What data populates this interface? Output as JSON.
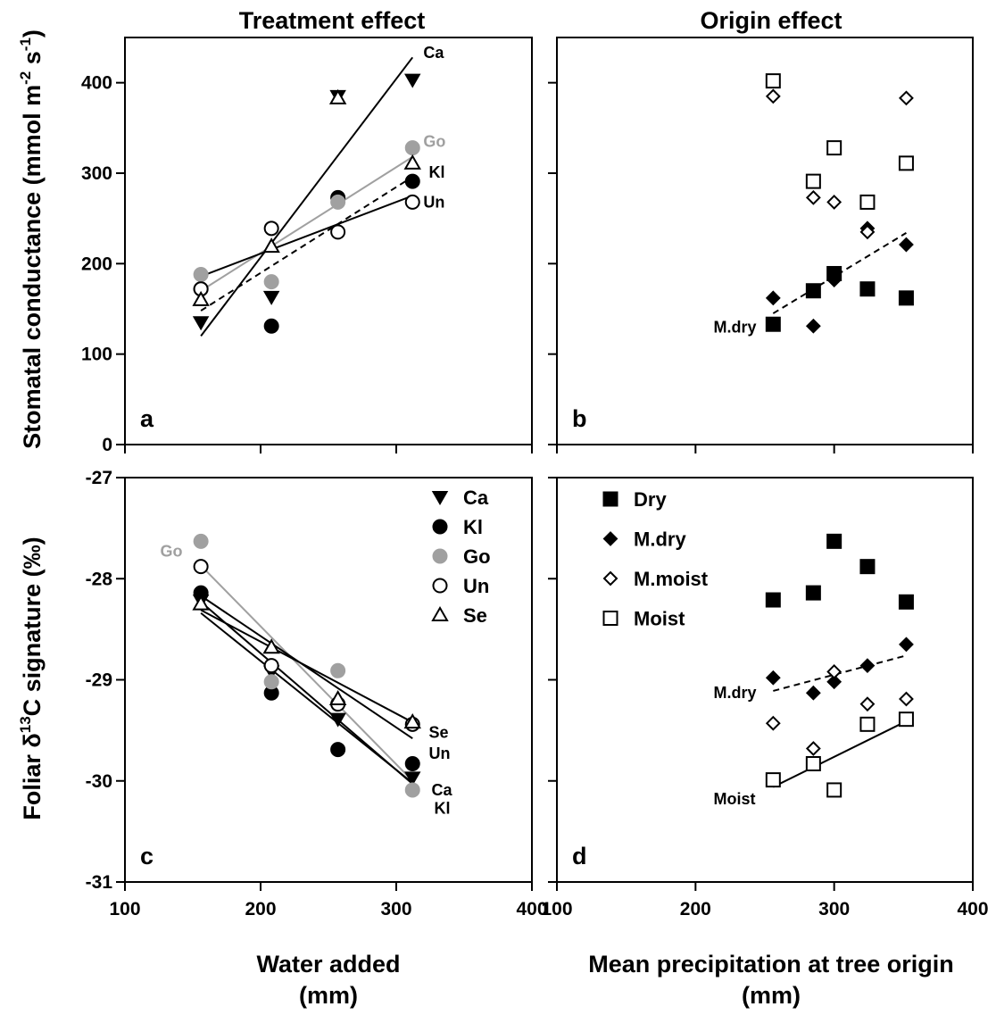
{
  "figure": {
    "col_titles": [
      "Treatment effect",
      "Origin effect"
    ],
    "y_titles": {
      "top": "Stomatal conductance (mmol m-2 s-1)",
      "bottom": "Foliar δ13C signature (‰)"
    },
    "x_titles": {
      "left": [
        "Water added",
        "(mm)"
      ],
      "right": [
        "Mean precipitation at tree origin",
        "(mm)"
      ]
    }
  },
  "colors": {
    "black": "#000000",
    "grey": "#a0a0a0"
  },
  "chart_data": [
    {
      "id": "a",
      "type": "scatter",
      "panel_label": "a",
      "title": "Treatment effect",
      "xlabel": "Water added (mm)",
      "ylabel": "Stomatal conductance (mmol m-2 s-1)",
      "xlim": [
        100,
        400
      ],
      "ylim": [
        0,
        450
      ],
      "xticks": [
        100,
        200,
        300,
        400
      ],
      "yticks": [
        0,
        100,
        200,
        300,
        400
      ],
      "grid": false,
      "series": [
        {
          "name": "Ca",
          "marker": "triangle-down-filled",
          "color": "#000000",
          "x": [
            156,
            208,
            257,
            312
          ],
          "y": [
            135,
            163,
            385,
            403
          ],
          "fit": {
            "x": [
              156,
              312
            ],
            "y": [
              120,
              428
            ],
            "dash": false
          }
        },
        {
          "name": "Kl",
          "marker": "circle-filled",
          "color": "#000000",
          "x": [
            156,
            208,
            257,
            312
          ],
          "y": [
            172,
            131,
            273,
            291
          ],
          "fit": {
            "x": [
              156,
              312
            ],
            "y": [
              148,
              296
            ],
            "dash": true
          }
        },
        {
          "name": "Go",
          "marker": "circle-filled",
          "color": "#a0a0a0",
          "x": [
            156,
            208,
            257,
            312
          ],
          "y": [
            188,
            180,
            268,
            328
          ],
          "fit": {
            "x": [
              156,
              312
            ],
            "y": [
              170,
              318
            ],
            "dash": false
          }
        },
        {
          "name": "Un",
          "marker": "circle-open",
          "color": "#000000",
          "x": [
            156,
            208,
            257,
            312
          ],
          "y": [
            172,
            239,
            235,
            268
          ],
          "fit": {
            "x": [
              156,
              312
            ],
            "y": [
              186,
              275
            ],
            "dash": false
          }
        },
        {
          "name": "Se",
          "marker": "triangle-up-open",
          "color": "#000000",
          "x": [
            156,
            208,
            257,
            312
          ],
          "y": [
            160,
            219,
            383,
            311
          ]
        }
      ],
      "annotations": [
        {
          "text": "Ca",
          "x": 320,
          "y": 433,
          "color": "#000000"
        },
        {
          "text": "Go",
          "x": 320,
          "y": 335,
          "color": "#a0a0a0"
        },
        {
          "text": "Kl",
          "x": 324,
          "y": 301,
          "color": "#000000"
        },
        {
          "text": "Un",
          "x": 320,
          "y": 268,
          "color": "#000000"
        }
      ]
    },
    {
      "id": "b",
      "type": "scatter",
      "panel_label": "b",
      "title": "Origin effect",
      "xlabel": "Mean precipitation at tree origin (mm)",
      "ylabel": "Stomatal conductance (mmol m-2 s-1)",
      "xlim": [
        100,
        400
      ],
      "ylim": [
        0,
        450
      ],
      "xticks": [
        100,
        200,
        300,
        400
      ],
      "yticks": [
        0,
        100,
        200,
        300,
        400
      ],
      "grid": false,
      "series": [
        {
          "name": "Dry",
          "marker": "square-filled",
          "color": "#000000",
          "x": [
            256,
            285,
            300,
            324,
            352
          ],
          "y": [
            133,
            170,
            189,
            172,
            162
          ]
        },
        {
          "name": "M.dry",
          "marker": "diamond-filled",
          "color": "#000000",
          "x": [
            256,
            285,
            300,
            324,
            352
          ],
          "y": [
            162,
            131,
            182,
            239,
            221
          ],
          "fit": {
            "x": [
              256,
              352
            ],
            "y": [
              145,
              234
            ],
            "dash": true
          }
        },
        {
          "name": "M.moist",
          "marker": "diamond-open",
          "color": "#000000",
          "x": [
            256,
            285,
            300,
            324,
            352
          ],
          "y": [
            385,
            273,
            268,
            235,
            383
          ]
        },
        {
          "name": "Moist",
          "marker": "square-open",
          "color": "#000000",
          "x": [
            256,
            285,
            300,
            324,
            352
          ],
          "y": [
            402,
            291,
            328,
            268,
            311
          ]
        }
      ],
      "annotations": [
        {
          "text": "M.dry",
          "x": 213,
          "y": 130,
          "color": "#000000"
        }
      ]
    },
    {
      "id": "c",
      "type": "scatter",
      "panel_label": "c",
      "xlabel": "Water added (mm)",
      "ylabel": "Foliar δ13C signature (‰)",
      "xlim": [
        100,
        400
      ],
      "ylim": [
        -31,
        -27
      ],
      "xticks": [
        100,
        200,
        300,
        400
      ],
      "yticks": [
        -31,
        -30,
        -29,
        -28,
        -27
      ],
      "grid": false,
      "legend": {
        "position": "top-right",
        "entries": [
          "Ca",
          "Kl",
          "Go",
          "Un",
          "Se"
        ]
      },
      "series": [
        {
          "name": "Ca",
          "marker": "triangle-down-filled",
          "color": "#000000",
          "x": [
            156,
            208,
            257,
            312
          ],
          "y": [
            -28.22,
            -28.92,
            -29.39,
            -29.97
          ],
          "fit": {
            "x": [
              156,
              312
            ],
            "y": [
              -28.34,
              -30.02
            ],
            "dash": false
          }
        },
        {
          "name": "Kl",
          "marker": "circle-filled",
          "color": "#000000",
          "x": [
            156,
            208,
            257,
            312
          ],
          "y": [
            -28.14,
            -29.13,
            -29.69,
            -29.83
          ],
          "fit": {
            "x": [
              156,
              312
            ],
            "y": [
              -28.23,
              -30.03
            ],
            "dash": false
          }
        },
        {
          "name": "Go",
          "marker": "circle-filled",
          "color": "#a0a0a0",
          "x": [
            156,
            208,
            257,
            312
          ],
          "y": [
            -27.63,
            -29.02,
            -28.91,
            -30.09
          ],
          "fit": {
            "x": [
              156,
              312
            ],
            "y": [
              -27.87,
              -30.0
            ],
            "dash": false
          }
        },
        {
          "name": "Un",
          "marker": "circle-open",
          "color": "#000000",
          "x": [
            156,
            208,
            257,
            312
          ],
          "y": [
            -27.88,
            -28.86,
            -29.24,
            -29.44
          ],
          "fit": {
            "x": [
              156,
              312
            ],
            "y": [
              -28.17,
              -29.58
            ],
            "dash": false
          }
        },
        {
          "name": "Se",
          "marker": "triangle-up-open",
          "color": "#000000",
          "x": [
            156,
            208,
            257,
            312
          ],
          "y": [
            -28.25,
            -28.68,
            -29.19,
            -29.42
          ],
          "fit": {
            "x": [
              156,
              312
            ],
            "y": [
              -28.31,
              -29.42
            ],
            "dash": false
          }
        }
      ],
      "annotations": [
        {
          "text": "Go",
          "x": 126,
          "y": -27.73,
          "color": "#a0a0a0"
        },
        {
          "text": "Se",
          "x": 324,
          "y": -29.52,
          "color": "#000000"
        },
        {
          "text": "Un",
          "x": 324,
          "y": -29.73,
          "color": "#000000"
        },
        {
          "text": "Ca",
          "x": 326,
          "y": -30.09,
          "color": "#000000"
        },
        {
          "text": "Kl",
          "x": 328,
          "y": -30.27,
          "color": "#000000"
        }
      ]
    },
    {
      "id": "d",
      "type": "scatter",
      "panel_label": "d",
      "xlabel": "Mean precipitation at tree origin (mm)",
      "ylabel": "Foliar δ13C signature (‰)",
      "xlim": [
        100,
        400
      ],
      "ylim": [
        -31,
        -27
      ],
      "xticks": [
        100,
        200,
        300,
        400
      ],
      "yticks": [
        -31,
        -30,
        -29,
        -28,
        -27
      ],
      "grid": false,
      "legend": {
        "position": "top-left",
        "entries": [
          "Dry",
          "M.dry",
          "M.moist",
          "Moist"
        ]
      },
      "series": [
        {
          "name": "Dry",
          "marker": "square-filled",
          "color": "#000000",
          "x": [
            256,
            285,
            300,
            324,
            352
          ],
          "y": [
            -28.21,
            -28.14,
            -27.63,
            -27.88,
            -28.23
          ]
        },
        {
          "name": "M.dry",
          "marker": "diamond-filled",
          "color": "#000000",
          "x": [
            256,
            285,
            300,
            324,
            352
          ],
          "y": [
            -28.98,
            -29.13,
            -29.02,
            -28.86,
            -28.65
          ],
          "fit": {
            "x": [
              256,
              352
            ],
            "y": [
              -29.11,
              -28.76
            ],
            "dash": true
          }
        },
        {
          "name": "M.moist",
          "marker": "diamond-open",
          "color": "#000000",
          "x": [
            256,
            285,
            300,
            324,
            352
          ],
          "y": [
            -29.43,
            -29.68,
            -28.92,
            -29.24,
            -29.19
          ]
        },
        {
          "name": "Moist",
          "marker": "square-open",
          "color": "#000000",
          "x": [
            256,
            285,
            300,
            324,
            352
          ],
          "y": [
            -29.99,
            -29.83,
            -30.09,
            -29.44,
            -29.39
          ],
          "fit": {
            "x": [
              256,
              352
            ],
            "y": [
              -30.06,
              -29.41
            ],
            "dash": false
          }
        }
      ],
      "annotations": [
        {
          "text": "M.dry",
          "x": 213,
          "y": -29.13,
          "color": "#000000"
        },
        {
          "text": "Moist",
          "x": 213,
          "y": -30.18,
          "color": "#000000"
        }
      ]
    }
  ]
}
